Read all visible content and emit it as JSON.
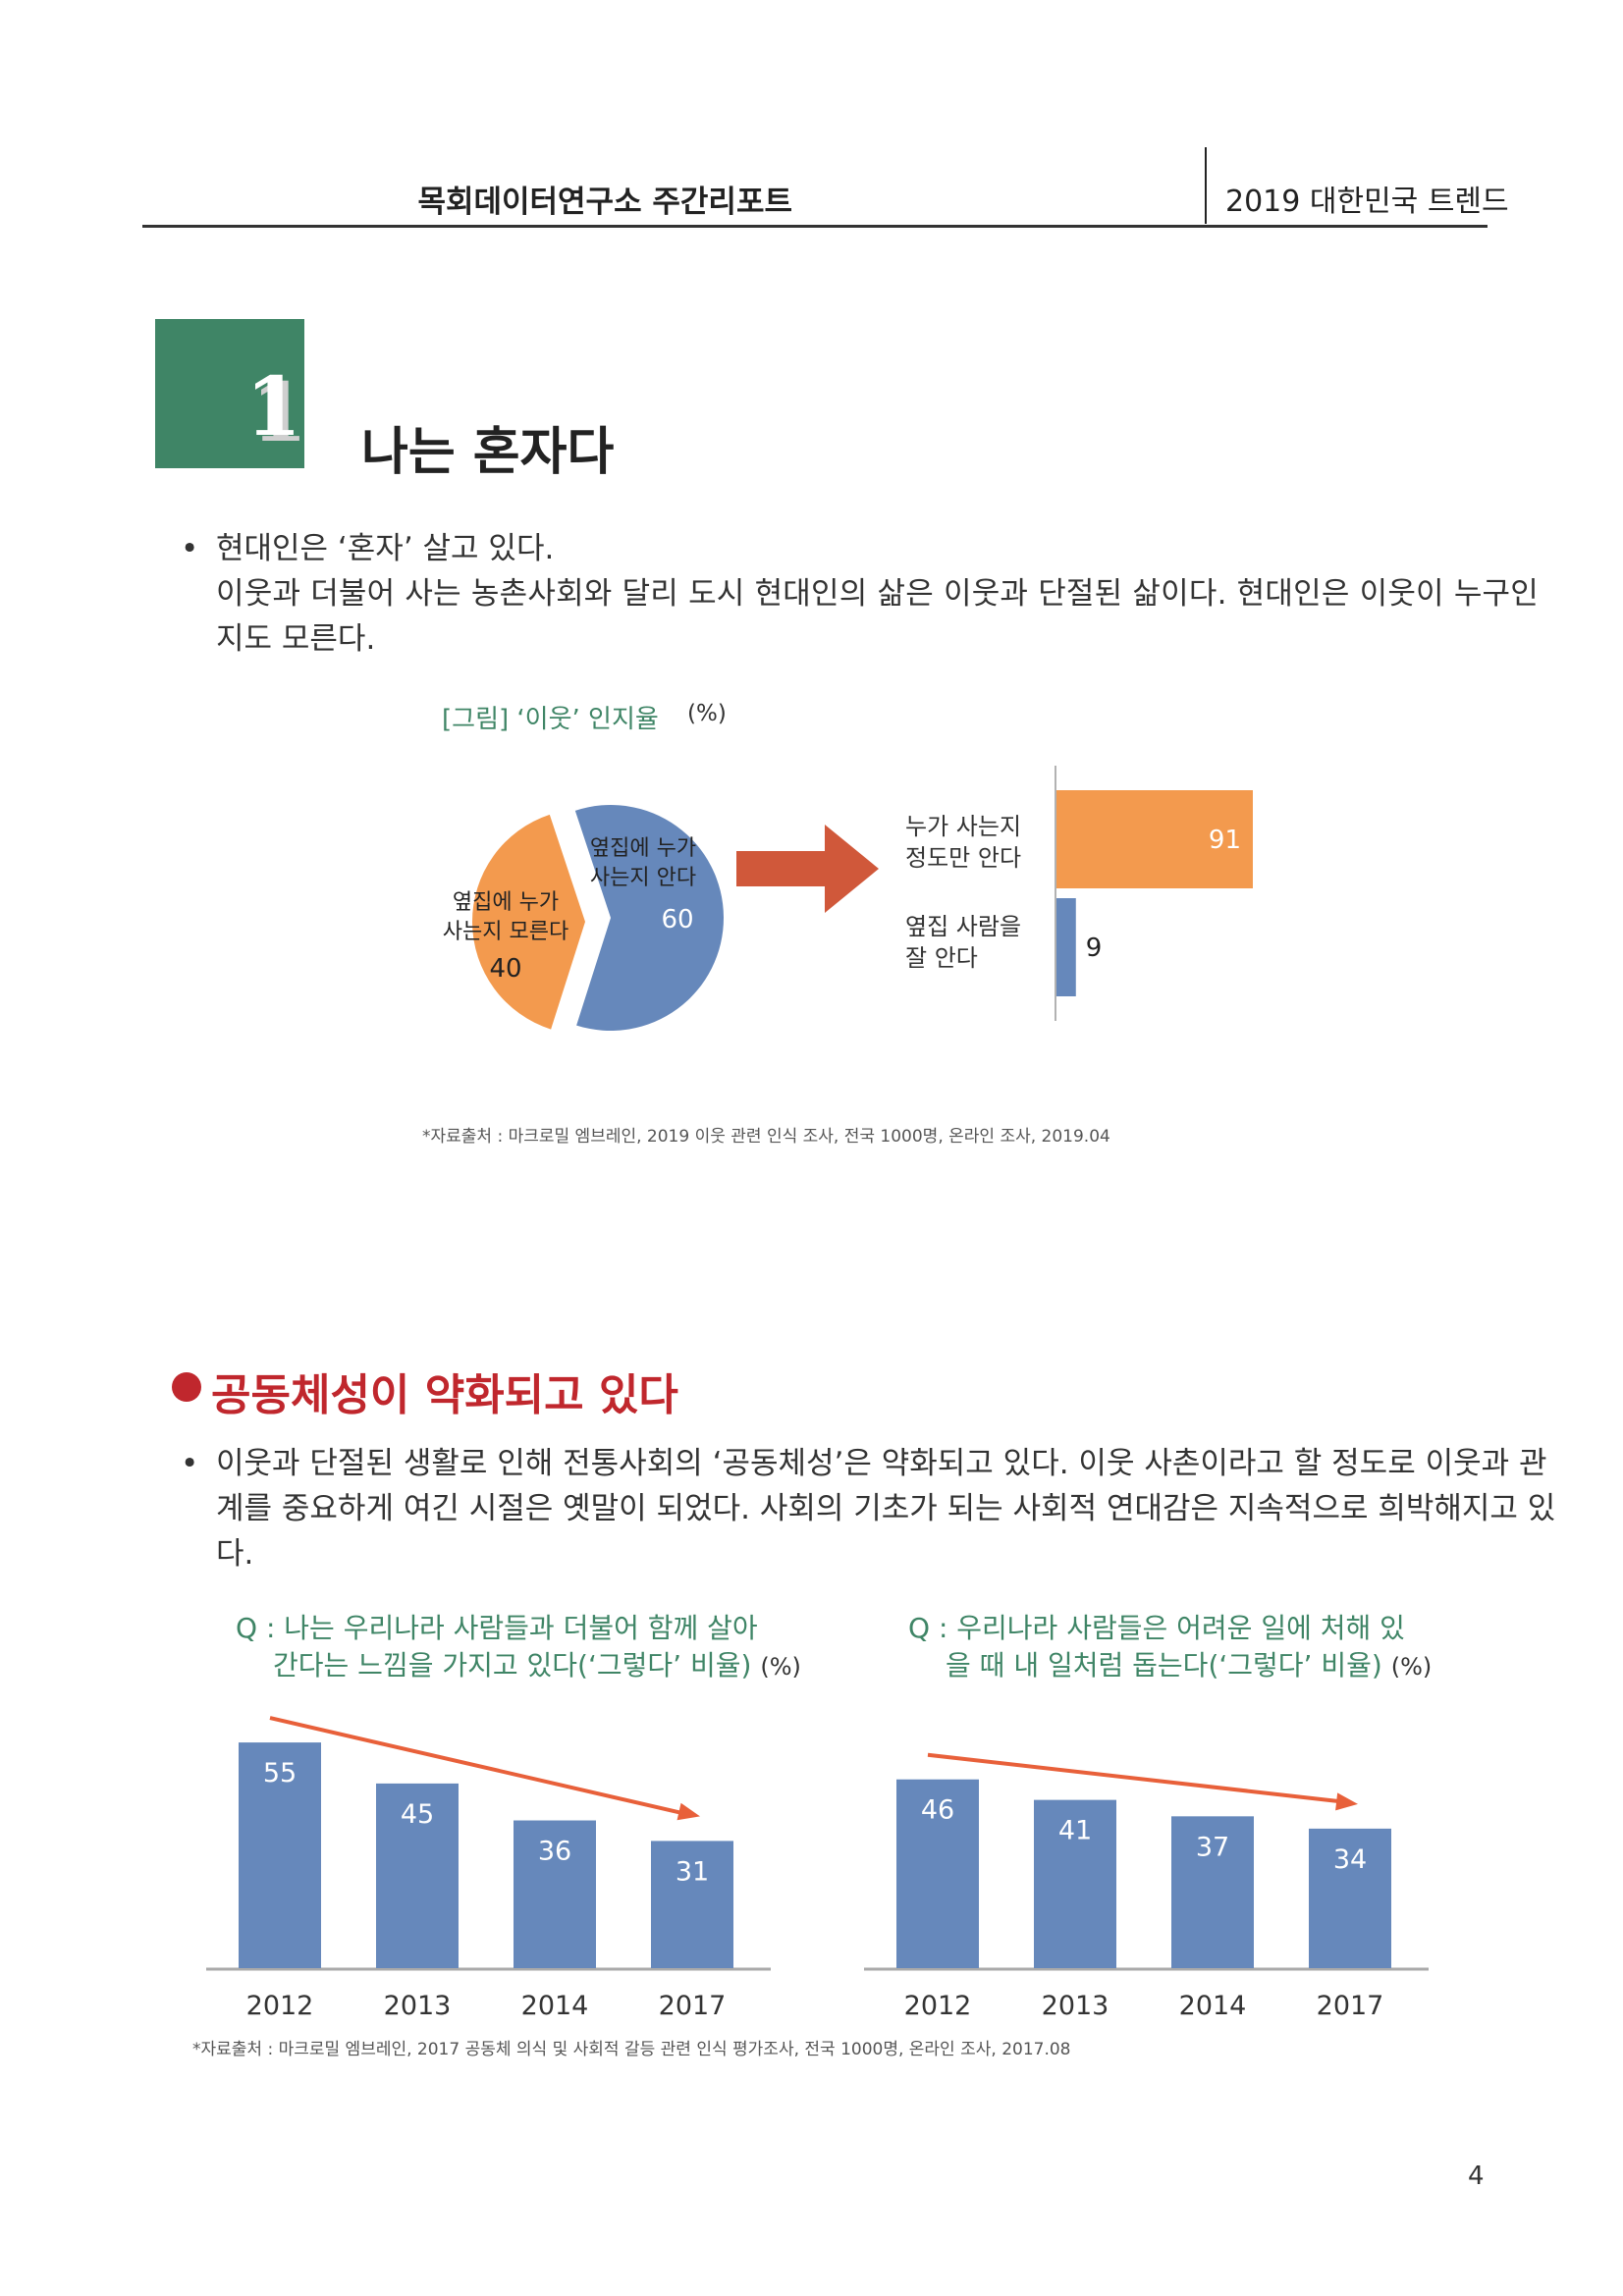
{
  "header": {
    "left": "목회데이터연구소 주간리포트",
    "right": "2019 대한민국 트렌드"
  },
  "section": {
    "number": "1",
    "title": "나는 혼자다"
  },
  "bullet1": {
    "line1": "현대인은 ‘혼자’ 살고 있다.",
    "line2": "이웃과 더불어 사는 농촌사회와 달리 도시 현대인의 삶은 이웃과 단절된 삶이다. 현대인은 이웃이 누구인",
    "line3": "지도 모른다."
  },
  "figure1": {
    "caption": "[그림] ‘이웃’ 인지율",
    "unit": "(%)",
    "source": "*자료출처 : 마크로밀 엠브레인, 2019 이웃 관련 인식 조사, 전국 1000명, 온라인 조사, 2019.04",
    "colors": {
      "blue": "#6688bb",
      "orange": "#f39a4e",
      "arrow": "#d0583a"
    }
  },
  "bullet2": {
    "title": "공동체성이 약화되고 있다",
    "line1": "이웃과 단절된 생활로 인해 전통사회의 ‘공동체성’은 약화되고 있다. 이웃 사촌이라고 할 정도로 이웃과 관",
    "line2": "계를 중요하게 여긴 시절은 옛말이 되었다. 사회의 기초가 되는 사회적 연대감은 지속적으로 희박해지고 있",
    "line3": "다."
  },
  "q1": {
    "line1": "Q : 나는 우리나라 사람들과 더불어 함께 살아",
    "line2": "간다는 느낌을 가지고 있다(‘그렇다’ 비율)",
    "unit": "(%)"
  },
  "q2": {
    "line1": "Q : 우리나라 사람들은 어려운 일에 처해 있",
    "line2": "을 때 내 일처럼 돕는다(‘그렇다’ 비율)",
    "unit": "(%)"
  },
  "source2": "*자료출처 : 마크로밀 엠브레인, 2017 공동체 의식 및 사회적 갈등 관련 인식 평가조사, 전국 1000명, 온라인 조사, 2017.08",
  "page_number": "4",
  "chart_data": [
    {
      "type": "pie",
      "labels": [
        "옆집에 누가 사는지 안다",
        "옆집에 누가 사는지 모른다"
      ],
      "values": [
        60,
        40
      ],
      "label_lines": [
        [
          "옆집에 누가",
          "사는지 안다"
        ],
        [
          "옆집에 누가",
          "사는지 모른다"
        ]
      ]
    },
    {
      "type": "bar",
      "orientation": "horizontal",
      "categories": [
        "누가 사는지 정도만 안다",
        "옆집 사람을 잘 안다"
      ],
      "category_lines": [
        [
          "누가 사는지",
          "정도만 안다"
        ],
        [
          "옆집 사람을",
          "잘 안다"
        ]
      ],
      "values": [
        91,
        9
      ]
    },
    {
      "type": "bar",
      "categories": [
        "2012",
        "2013",
        "2014",
        "2017"
      ],
      "values": [
        55,
        45,
        36,
        31
      ],
      "ylim": [
        0,
        60
      ],
      "trend": "decreasing"
    },
    {
      "type": "bar",
      "categories": [
        "2012",
        "2013",
        "2014",
        "2017"
      ],
      "values": [
        46,
        41,
        37,
        34
      ],
      "ylim": [
        0,
        60
      ],
      "trend": "decreasing"
    }
  ]
}
